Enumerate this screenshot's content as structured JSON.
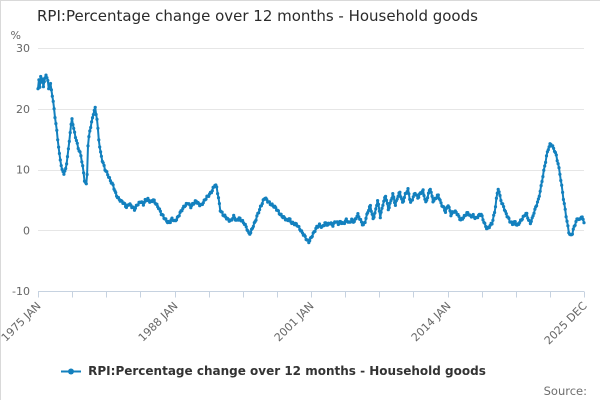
{
  "header": {
    "title": "RPI:Percentage change over 12 months - Household goods"
  },
  "legend": {
    "label": "RPI:Percentage change over 12 months - Household goods"
  },
  "footer": {
    "source_label": "Source:"
  },
  "colors": {
    "line": "#1380be",
    "gridline": "#e6e6e6",
    "axis": "#c6d2e0",
    "tick": "#c6d2e0",
    "axis_label": "#666666",
    "title": "#2b2b2b",
    "legend_text": "#333333",
    "source_text": "#6e6e6e"
  },
  "chart_data": {
    "type": "line",
    "title": "RPI:Percentage change over 12 months - Household goods",
    "unit_label": "%",
    "legend_position": "bottom-center",
    "grid": "horizontal-only",
    "y_axis": {
      "ticks": [
        30,
        20,
        10,
        0,
        -10
      ],
      "min": -10,
      "max": 30
    },
    "x_axis": {
      "labels": [
        "1975 JAN",
        "1988 JAN",
        "2001 JAN",
        "2014 JAN",
        "2025 DEC"
      ],
      "min_t": 1975.0,
      "max_t": 2025.917,
      "tick_count": 17,
      "labeled_tick_indexes": [
        0,
        4,
        8,
        12,
        16
      ],
      "label_rotation_deg": -45
    },
    "series": [
      {
        "name": "RPI:Percentage change over 12 months - Household goods",
        "color": "#1380be",
        "frequency": "monthly",
        "points": [
          [
            1975.0,
            23.3
          ],
          [
            1975.08,
            24.6
          ],
          [
            1975.17,
            23.5
          ],
          [
            1975.25,
            25.3
          ],
          [
            1975.33,
            24.1
          ],
          [
            1975.42,
            24.9
          ],
          [
            1975.5,
            23.8
          ],
          [
            1975.58,
            24.4
          ],
          [
            1975.75,
            25.8
          ],
          [
            1975.92,
            24.5
          ],
          [
            1976.0,
            23.4
          ],
          [
            1976.17,
            23.9
          ],
          [
            1976.33,
            22.2
          ],
          [
            1976.5,
            20.0
          ],
          [
            1976.75,
            16.4
          ],
          [
            1977.0,
            12.4
          ],
          [
            1977.25,
            9.8
          ],
          [
            1977.42,
            9.4
          ],
          [
            1977.58,
            10.1
          ],
          [
            1977.83,
            13.2
          ],
          [
            1978.0,
            16.1
          ],
          [
            1978.17,
            18.3
          ],
          [
            1978.33,
            16.7
          ],
          [
            1978.5,
            15.5
          ],
          [
            1978.75,
            13.6
          ],
          [
            1979.0,
            12.2
          ],
          [
            1979.17,
            10.4
          ],
          [
            1979.33,
            8.3
          ],
          [
            1979.5,
            7.6
          ],
          [
            1979.58,
            9.2
          ],
          [
            1979.67,
            14.2
          ],
          [
            1979.83,
            16.3
          ],
          [
            1980.0,
            17.6
          ],
          [
            1980.17,
            19.2
          ],
          [
            1980.33,
            20.2
          ],
          [
            1980.5,
            18.4
          ],
          [
            1980.67,
            14.9
          ],
          [
            1980.83,
            12.7
          ],
          [
            1981.0,
            11.4
          ],
          [
            1981.25,
            10.1
          ],
          [
            1981.5,
            9.3
          ],
          [
            1981.75,
            8.1
          ],
          [
            1982.0,
            7.3
          ],
          [
            1982.25,
            6.1
          ],
          [
            1982.5,
            5.3
          ],
          [
            1982.75,
            4.7
          ],
          [
            1983.0,
            4.4
          ],
          [
            1983.25,
            3.9
          ],
          [
            1983.5,
            4.4
          ],
          [
            1983.75,
            3.8
          ],
          [
            1984.0,
            3.4
          ],
          [
            1984.25,
            4.3
          ],
          [
            1984.58,
            4.7
          ],
          [
            1984.83,
            4.2
          ],
          [
            1985.0,
            4.9
          ],
          [
            1985.25,
            5.2
          ],
          [
            1985.5,
            4.6
          ],
          [
            1985.75,
            4.9
          ],
          [
            1986.0,
            4.4
          ],
          [
            1986.25,
            3.8
          ],
          [
            1986.5,
            2.7
          ],
          [
            1986.75,
            2.0
          ],
          [
            1987.0,
            1.6
          ],
          [
            1987.25,
            1.3
          ],
          [
            1987.5,
            1.8
          ],
          [
            1987.75,
            1.4
          ],
          [
            1988.0,
            2.1
          ],
          [
            1988.25,
            2.9
          ],
          [
            1988.5,
            3.5
          ],
          [
            1988.75,
            4.1
          ],
          [
            1989.0,
            4.6
          ],
          [
            1989.25,
            3.9
          ],
          [
            1989.5,
            4.3
          ],
          [
            1989.75,
            4.8
          ],
          [
            1990.0,
            4.4
          ],
          [
            1990.25,
            4.1
          ],
          [
            1990.5,
            4.7
          ],
          [
            1990.75,
            5.5
          ],
          [
            1991.0,
            6.0
          ],
          [
            1991.25,
            6.5
          ],
          [
            1991.5,
            7.4
          ],
          [
            1991.67,
            7.1
          ],
          [
            1991.83,
            5.4
          ],
          [
            1992.0,
            3.4
          ],
          [
            1992.25,
            2.5
          ],
          [
            1992.5,
            2.1
          ],
          [
            1992.75,
            1.8
          ],
          [
            1993.0,
            1.6
          ],
          [
            1993.25,
            2.2
          ],
          [
            1993.5,
            1.5
          ],
          [
            1993.75,
            2.1
          ],
          [
            1994.0,
            1.6
          ],
          [
            1994.25,
            1.0
          ],
          [
            1994.5,
            0.2
          ],
          [
            1994.67,
            -0.5
          ],
          [
            1994.83,
            -0.3
          ],
          [
            1995.0,
            0.4
          ],
          [
            1995.25,
            1.3
          ],
          [
            1995.5,
            2.7
          ],
          [
            1995.75,
            3.9
          ],
          [
            1996.0,
            4.8
          ],
          [
            1996.17,
            5.3
          ],
          [
            1996.33,
            4.9
          ],
          [
            1996.58,
            4.6
          ],
          [
            1996.83,
            4.2
          ],
          [
            1997.0,
            3.9
          ],
          [
            1997.25,
            3.4
          ],
          [
            1997.5,
            2.9
          ],
          [
            1997.75,
            2.4
          ],
          [
            1998.0,
            1.9
          ],
          [
            1998.25,
            1.5
          ],
          [
            1998.42,
            2.0
          ],
          [
            1998.67,
            1.3
          ],
          [
            1998.92,
            1.0
          ],
          [
            1999.17,
            0.8
          ],
          [
            1999.42,
            0.3
          ],
          [
            1999.67,
            -0.4
          ],
          [
            1999.92,
            -1.2
          ],
          [
            2000.08,
            -1.7
          ],
          [
            2000.25,
            -1.9
          ],
          [
            2000.42,
            -1.3
          ],
          [
            2000.58,
            -0.8
          ],
          [
            2000.83,
            -0.1
          ],
          [
            2001.0,
            0.4
          ],
          [
            2001.25,
            0.9
          ],
          [
            2001.5,
            0.6
          ],
          [
            2001.75,
            1.1
          ],
          [
            2002.0,
            0.8
          ],
          [
            2002.25,
            1.3
          ],
          [
            2002.5,
            0.9
          ],
          [
            2002.75,
            1.4
          ],
          [
            2003.0,
            1.0
          ],
          [
            2003.25,
            1.5
          ],
          [
            2003.5,
            1.1
          ],
          [
            2003.75,
            1.6
          ],
          [
            2004.0,
            1.2
          ],
          [
            2004.25,
            1.8
          ],
          [
            2004.5,
            1.4
          ],
          [
            2004.83,
            2.5
          ],
          [
            2005.08,
            1.7
          ],
          [
            2005.33,
            0.9
          ],
          [
            2005.5,
            1.4
          ],
          [
            2005.75,
            2.9
          ],
          [
            2006.0,
            4.1
          ],
          [
            2006.25,
            1.9
          ],
          [
            2006.5,
            3.3
          ],
          [
            2006.67,
            4.9
          ],
          [
            2006.92,
            2.2
          ],
          [
            2007.17,
            4.4
          ],
          [
            2007.42,
            5.7
          ],
          [
            2007.67,
            3.3
          ],
          [
            2007.92,
            4.9
          ],
          [
            2008.08,
            6.1
          ],
          [
            2008.33,
            4.1
          ],
          [
            2008.58,
            5.6
          ],
          [
            2008.75,
            6.2
          ],
          [
            2009.0,
            4.6
          ],
          [
            2009.25,
            5.9
          ],
          [
            2009.5,
            6.6
          ],
          [
            2009.75,
            4.5
          ],
          [
            2010.0,
            5.6
          ],
          [
            2010.17,
            6.2
          ],
          [
            2010.42,
            5.2
          ],
          [
            2010.67,
            6.1
          ],
          [
            2010.92,
            6.6
          ],
          [
            2011.17,
            4.5
          ],
          [
            2011.42,
            5.9
          ],
          [
            2011.58,
            6.9
          ],
          [
            2011.83,
            4.9
          ],
          [
            2012.08,
            5.3
          ],
          [
            2012.33,
            5.7
          ],
          [
            2012.58,
            4.4
          ],
          [
            2012.83,
            3.8
          ],
          [
            2013.0,
            3.1
          ],
          [
            2013.25,
            4.1
          ],
          [
            2013.5,
            2.5
          ],
          [
            2013.75,
            3.2
          ],
          [
            2014.0,
            3.0
          ],
          [
            2014.25,
            2.1
          ],
          [
            2014.42,
            1.6
          ],
          [
            2014.67,
            2.2
          ],
          [
            2014.92,
            2.7
          ],
          [
            2015.08,
            2.8
          ],
          [
            2015.33,
            2.2
          ],
          [
            2015.58,
            2.5
          ],
          [
            2015.83,
            2.0
          ],
          [
            2016.08,
            2.3
          ],
          [
            2016.33,
            2.6
          ],
          [
            2016.58,
            1.5
          ],
          [
            2016.75,
            0.7
          ],
          [
            2016.92,
            0.2
          ],
          [
            2017.08,
            0.5
          ],
          [
            2017.33,
            1.1
          ],
          [
            2017.58,
            3.0
          ],
          [
            2017.75,
            5.2
          ],
          [
            2017.92,
            6.9
          ],
          [
            2018.08,
            5.5
          ],
          [
            2018.25,
            4.4
          ],
          [
            2018.42,
            4.0
          ],
          [
            2018.58,
            3.1
          ],
          [
            2018.83,
            2.1
          ],
          [
            2019.0,
            1.4
          ],
          [
            2019.25,
            1.0
          ],
          [
            2019.5,
            1.5
          ],
          [
            2019.67,
            0.8
          ],
          [
            2019.92,
            1.2
          ],
          [
            2020.17,
            1.9
          ],
          [
            2020.42,
            2.7
          ],
          [
            2020.58,
            2.8
          ],
          [
            2020.75,
            1.6
          ],
          [
            2020.92,
            1.1
          ],
          [
            2021.08,
            1.8
          ],
          [
            2021.25,
            3.0
          ],
          [
            2021.5,
            4.3
          ],
          [
            2021.67,
            5.0
          ],
          [
            2021.92,
            7.1
          ],
          [
            2022.08,
            8.9
          ],
          [
            2022.25,
            10.6
          ],
          [
            2022.42,
            12.3
          ],
          [
            2022.58,
            13.4
          ],
          [
            2022.75,
            14.0
          ],
          [
            2022.83,
            14.1
          ],
          [
            2023.0,
            13.7
          ],
          [
            2023.17,
            13.2
          ],
          [
            2023.33,
            12.4
          ],
          [
            2023.5,
            11.0
          ],
          [
            2023.67,
            9.2
          ],
          [
            2023.83,
            7.2
          ],
          [
            2024.0,
            5.2
          ],
          [
            2024.17,
            3.4
          ],
          [
            2024.33,
            1.6
          ],
          [
            2024.5,
            -0.3
          ],
          [
            2024.67,
            -1.0
          ],
          [
            2024.83,
            -0.6
          ],
          [
            2025.0,
            0.6
          ],
          [
            2025.17,
            1.5
          ],
          [
            2025.33,
            2.1
          ],
          [
            2025.5,
            1.6
          ],
          [
            2025.67,
            2.2
          ],
          [
            2025.83,
            1.7
          ],
          [
            2025.92,
            1.4
          ]
        ]
      }
    ]
  }
}
